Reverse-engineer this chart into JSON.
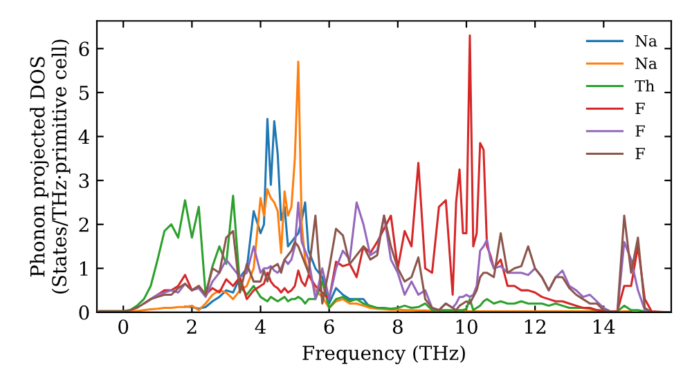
{
  "chart_data": {
    "type": "line",
    "xlabel": "Frequency (THz)",
    "ylabel": "Phonon projected DOS\n(States/THz·primitive cell)",
    "x": [
      -0.7,
      0,
      0.2,
      0.4,
      0.6,
      0.8,
      1.0,
      1.2,
      1.4,
      1.6,
      1.8,
      2.0,
      2.2,
      2.4,
      2.6,
      2.8,
      3.0,
      3.2,
      3.4,
      3.6,
      3.8,
      4.0,
      4.1,
      4.2,
      4.3,
      4.4,
      4.5,
      4.6,
      4.7,
      4.8,
      4.9,
      5.0,
      5.1,
      5.2,
      5.3,
      5.4,
      5.6,
      5.8,
      6.0,
      6.2,
      6.4,
      6.6,
      6.8,
      7.0,
      7.2,
      7.4,
      7.6,
      7.8,
      8.0,
      8.2,
      8.4,
      8.6,
      8.8,
      9.0,
      9.2,
      9.4,
      9.6,
      9.7,
      9.8,
      9.9,
      10.0,
      10.1,
      10.2,
      10.3,
      10.4,
      10.5,
      10.6,
      10.7,
      10.8,
      11.0,
      11.2,
      11.4,
      11.6,
      11.8,
      12.0,
      12.2,
      12.4,
      12.6,
      12.8,
      13.0,
      13.2,
      13.4,
      13.6,
      13.8,
      14.0,
      14.2,
      14.4,
      14.6,
      14.8,
      15.0,
      15.2,
      15.4,
      15.9
    ],
    "series": [
      {
        "name": "Na",
        "color": "#1f77b4",
        "values": [
          null,
          null,
          null,
          null,
          null,
          null,
          null,
          null,
          null,
          null,
          0.13,
          0.12,
          0.08,
          0.12,
          0.25,
          0.35,
          0.5,
          0.45,
          0.8,
          1.0,
          2.3,
          1.8,
          2.0,
          4.4,
          2.9,
          4.35,
          3.6,
          2.1,
          2.4,
          1.5,
          1.6,
          1.7,
          1.8,
          2.1,
          2.5,
          1.4,
          1.0,
          0.8,
          0.2,
          0.55,
          0.4,
          0.3,
          0.3,
          0.3,
          0.1,
          0.1,
          null,
          null,
          null,
          null,
          null,
          null,
          null,
          null,
          null,
          null,
          null,
          null,
          null,
          null,
          null,
          null,
          null,
          null,
          null,
          null,
          null,
          null,
          null,
          null,
          null,
          null,
          null,
          null,
          null,
          null,
          null,
          null,
          null,
          null,
          null,
          null,
          null,
          null,
          null,
          null,
          null,
          null,
          null,
          null,
          null,
          null,
          null
        ]
      },
      {
        "name": "Na",
        "color": "#ff7f0e",
        "values": [
          0.01,
          0.01,
          0.02,
          0.03,
          0.05,
          0.07,
          0.08,
          0.1,
          0.1,
          0.12,
          0.12,
          0.15,
          0.05,
          0.2,
          0.4,
          0.5,
          0.45,
          0.3,
          0.5,
          0.6,
          1.0,
          2.6,
          2.2,
          2.8,
          2.6,
          2.5,
          2.3,
          1.35,
          2.75,
          2.2,
          2.4,
          3.5,
          5.7,
          2.0,
          1.2,
          0.9,
          0.5,
          0.35,
          0.1,
          0.25,
          0.3,
          0.2,
          0.2,
          0.15,
          0.1,
          0.08,
          0.07,
          0.06,
          0.06,
          0.05,
          0.05,
          0.04,
          0.04,
          0.03,
          0.02,
          0.02,
          0.02,
          0.02,
          0.02,
          0.02,
          0.02,
          0.02,
          0.02,
          0.02,
          0.02,
          0.02,
          0.02,
          0.02,
          0.02,
          0.02,
          0.02,
          0.02,
          0.02,
          0.02,
          0.02,
          0.02,
          0.02,
          0.02,
          0.02,
          0.02,
          0.02,
          0.02,
          0.02,
          0.02,
          0.01,
          0.01,
          0.01,
          0.02,
          0.02,
          null,
          null,
          null,
          null
        ]
      },
      {
        "name": "Th",
        "color": "#2ca02c",
        "values": [
          0.03,
          0.03,
          0.05,
          0.15,
          0.3,
          0.6,
          1.2,
          1.85,
          2.0,
          1.7,
          2.55,
          1.7,
          2.4,
          0.4,
          1.05,
          1.5,
          1.1,
          2.65,
          0.6,
          0.4,
          0.6,
          0.35,
          0.3,
          0.25,
          0.35,
          0.3,
          0.25,
          0.3,
          0.35,
          0.25,
          0.3,
          0.3,
          0.35,
          0.3,
          0.2,
          0.3,
          0.3,
          0.7,
          0.1,
          0.3,
          0.35,
          0.25,
          0.3,
          0.2,
          0.15,
          0.1,
          0.1,
          0.08,
          0.1,
          0.15,
          0.1,
          0.12,
          0.2,
          0.05,
          0.05,
          0.05,
          0.05,
          0.04,
          0.05,
          0.05,
          0.08,
          0.3,
          0.05,
          0.1,
          0.15,
          0.25,
          0.3,
          0.25,
          0.2,
          0.25,
          0.2,
          0.2,
          0.25,
          0.2,
          0.2,
          0.2,
          0.15,
          0.2,
          0.15,
          0.1,
          0.1,
          0.1,
          0.08,
          0.05,
          0.05,
          0.02,
          0.02,
          0.15,
          0.05,
          0.05,
          0.02,
          0.0,
          0.0
        ]
      },
      {
        "name": "F",
        "color": "#d62728",
        "values": [
          null,
          null,
          null,
          null,
          0.2,
          0.3,
          0.4,
          0.5,
          0.5,
          0.6,
          0.85,
          0.5,
          0.6,
          0.4,
          0.55,
          0.45,
          0.75,
          0.6,
          0.8,
          0.3,
          0.5,
          0.6,
          0.65,
          0.9,
          0.7,
          0.6,
          0.55,
          0.45,
          0.55,
          0.45,
          0.5,
          0.6,
          0.95,
          0.7,
          0.6,
          0.85,
          0.6,
          0.45,
          0.3,
          1.15,
          1.05,
          1.1,
          0.8,
          1.5,
          1.35,
          1.6,
          1.9,
          2.2,
          1.0,
          1.85,
          1.5,
          3.4,
          1.0,
          0.9,
          2.4,
          2.55,
          0.4,
          2.5,
          3.25,
          1.8,
          1.8,
          6.3,
          1.5,
          1.8,
          3.85,
          3.7,
          1.5,
          1.3,
          1.0,
          1.2,
          0.6,
          0.6,
          0.5,
          0.5,
          0.45,
          0.35,
          0.3,
          0.25,
          0.25,
          0.2,
          0.15,
          0.1,
          0.1,
          0.05,
          0.02,
          0.02,
          0.02,
          0.6,
          0.6,
          1.5,
          0.3,
          0.02,
          0.0
        ]
      },
      {
        "name": "F",
        "color": "#9467bd",
        "values": [
          null,
          null,
          null,
          null,
          0.2,
          0.3,
          0.4,
          0.45,
          0.5,
          0.45,
          0.65,
          0.5,
          0.55,
          0.35,
          0.7,
          0.9,
          1.2,
          1.0,
          0.8,
          0.9,
          1.5,
          0.9,
          1.0,
          1.0,
          1.05,
          0.95,
          0.9,
          1.0,
          1.2,
          1.1,
          1.2,
          1.5,
          2.5,
          1.6,
          1.4,
          1.2,
          0.3,
          1.0,
          0.3,
          1.0,
          1.4,
          1.2,
          2.5,
          2.0,
          1.3,
          1.4,
          2.2,
          1.2,
          0.9,
          0.4,
          0.7,
          0.4,
          0.5,
          0.1,
          0.05,
          0.2,
          0.1,
          0.2,
          0.35,
          0.35,
          0.4,
          0.35,
          0.4,
          0.6,
          1.4,
          1.5,
          1.65,
          1.2,
          1.0,
          1.05,
          0.9,
          0.9,
          0.9,
          0.85,
          1.0,
          0.8,
          0.5,
          0.8,
          0.95,
          0.6,
          0.5,
          0.35,
          0.4,
          0.25,
          0.1,
          0.02,
          0.0,
          1.6,
          1.2,
          0.5,
          0.05,
          0.0,
          0.0
        ]
      },
      {
        "name": "F",
        "color": "#8c564b",
        "values": [
          0.02,
          0.02,
          0.05,
          0.1,
          0.2,
          0.3,
          0.35,
          0.4,
          0.4,
          0.55,
          0.65,
          0.5,
          0.6,
          0.4,
          1.0,
          0.9,
          1.7,
          1.85,
          0.45,
          1.1,
          0.7,
          0.7,
          0.95,
          0.7,
          1.0,
          1.05,
          1.1,
          0.9,
          1.2,
          1.3,
          1.4,
          1.6,
          1.5,
          1.3,
          1.1,
          0.9,
          2.2,
          0.2,
          1.0,
          1.9,
          1.75,
          1.1,
          1.3,
          1.5,
          1.2,
          1.3,
          2.2,
          1.5,
          1.0,
          0.7,
          0.8,
          1.25,
          0.3,
          0.1,
          0.05,
          0.2,
          0.1,
          0.05,
          0.15,
          0.2,
          0.25,
          0.2,
          0.35,
          0.5,
          0.8,
          0.9,
          0.9,
          0.85,
          0.8,
          1.8,
          0.9,
          1.0,
          1.05,
          1.5,
          1.0,
          0.8,
          0.5,
          0.8,
          0.8,
          0.55,
          0.4,
          0.3,
          0.2,
          0.2,
          0.05,
          0.02,
          0.0,
          2.2,
          0.9,
          1.7,
          0.1,
          0.0,
          0.0
        ]
      }
    ],
    "xlim": [
      -0.77,
      15.97
    ],
    "ylim": [
      0,
      6.63
    ],
    "xticks": [
      0,
      2,
      4,
      6,
      8,
      10,
      12,
      14
    ],
    "yticks": [
      0,
      1,
      2,
      3,
      4,
      5,
      6
    ],
    "grid": false,
    "legend": "top right",
    "marker": "none",
    "line_style": "solid"
  }
}
